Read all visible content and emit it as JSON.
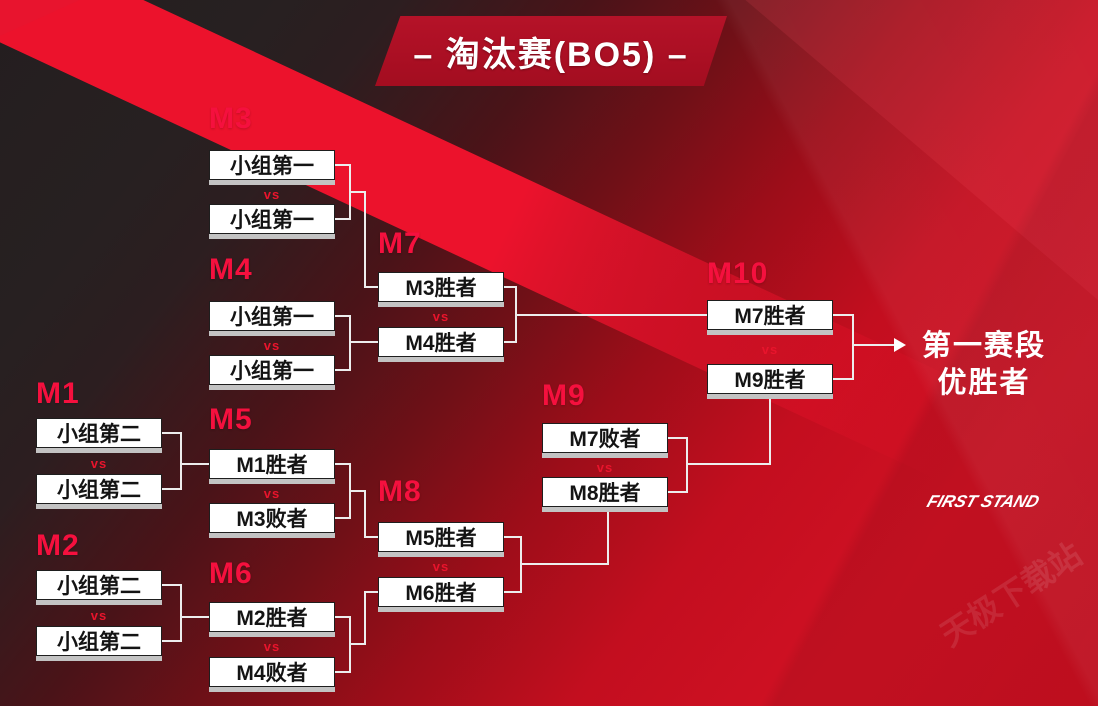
{
  "banner": {
    "title": "– 淘汰赛(BO5) –"
  },
  "bracket": {
    "vs_label": "vs",
    "matches": [
      {
        "id": "M1",
        "label": "M1",
        "slots": [
          "小组第二",
          "小组第二"
        ]
      },
      {
        "id": "M2",
        "label": "M2",
        "slots": [
          "小组第二",
          "小组第二"
        ]
      },
      {
        "id": "M3",
        "label": "M3",
        "slots": [
          "小组第一",
          "小组第一"
        ]
      },
      {
        "id": "M4",
        "label": "M4",
        "slots": [
          "小组第一",
          "小组第一"
        ]
      },
      {
        "id": "M5",
        "label": "M5",
        "slots": [
          "M1胜者",
          "M3败者"
        ]
      },
      {
        "id": "M6",
        "label": "M6",
        "slots": [
          "M2胜者",
          "M4败者"
        ]
      },
      {
        "id": "M7",
        "label": "M7",
        "slots": [
          "M3胜者",
          "M4胜者"
        ]
      },
      {
        "id": "M8",
        "label": "M8",
        "slots": [
          "M5胜者",
          "M6胜者"
        ]
      },
      {
        "id": "M9",
        "label": "M9",
        "slots": [
          "M7败者",
          "M8胜者"
        ]
      },
      {
        "id": "M10",
        "label": "M10",
        "slots": [
          "M7胜者",
          "M9胜者"
        ]
      }
    ],
    "champion": {
      "line1": "第一赛段",
      "line2": "优胜者"
    }
  },
  "logo": {
    "text": "FIRST STAND"
  },
  "watermark": {
    "text": "天极下载站"
  },
  "colors": {
    "accent_red": "#e8142c",
    "label_red": "#f5103e",
    "dark_bg": "#241e1f",
    "field_red": "#cf1023",
    "box_bg": "#ffffff",
    "connector": "#ededed"
  }
}
